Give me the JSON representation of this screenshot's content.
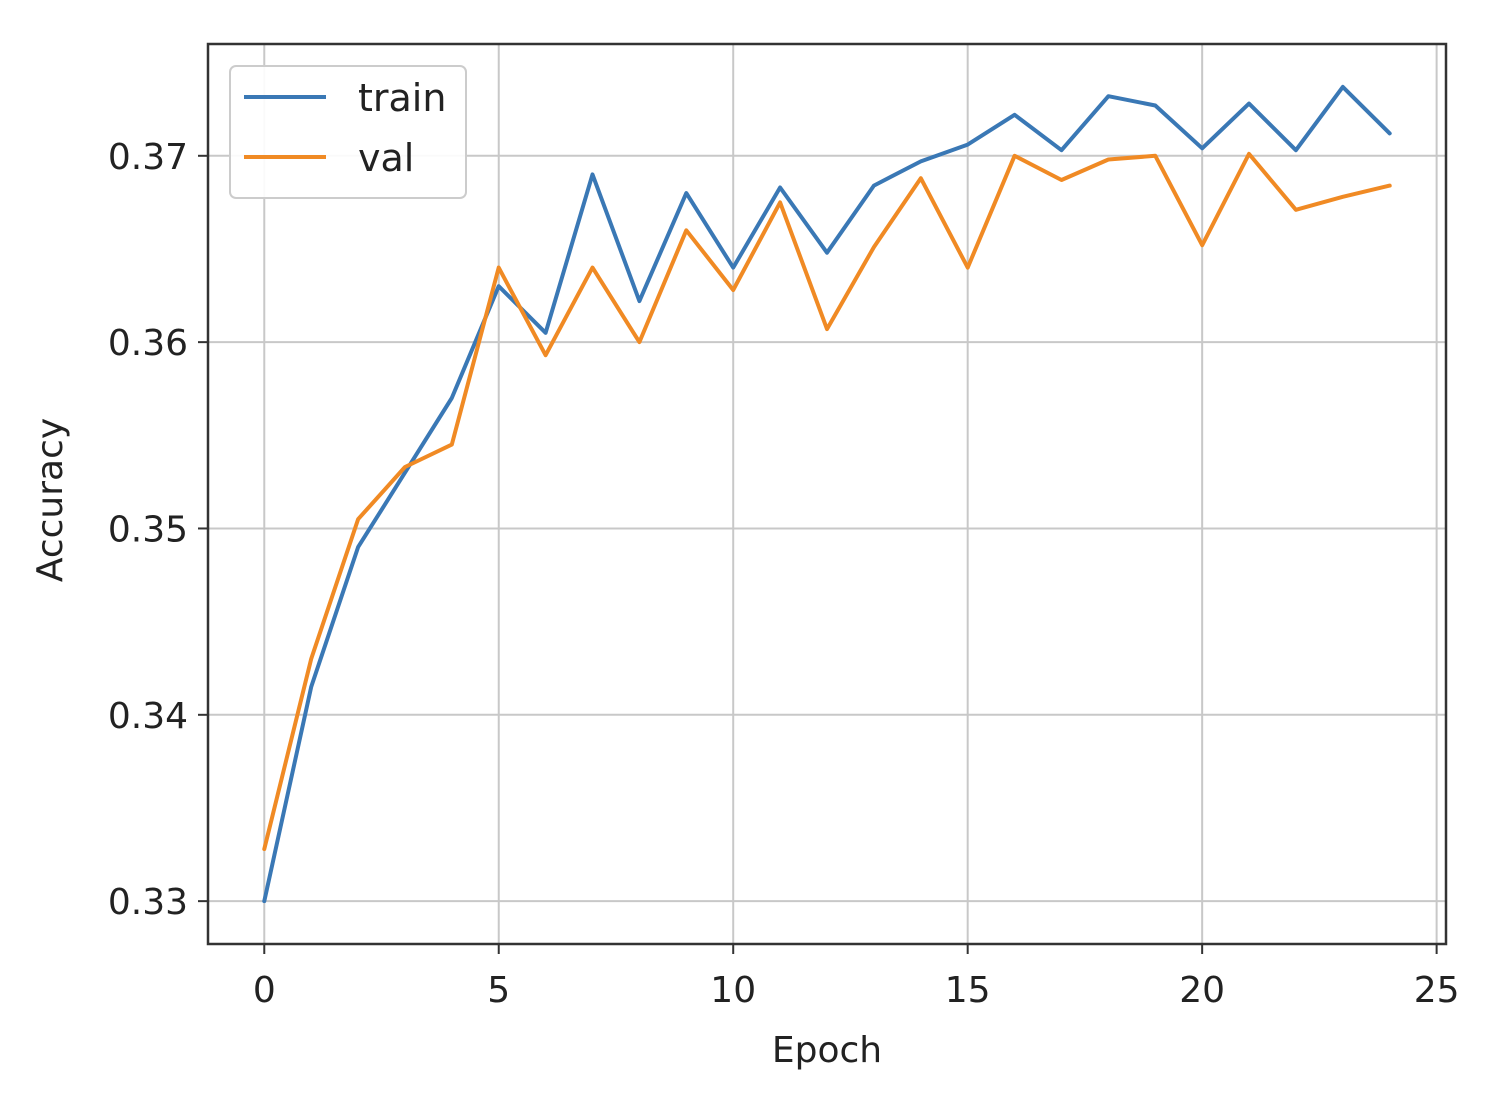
{
  "chart_data": {
    "type": "line",
    "xlabel": "Epoch",
    "ylabel": "Accuracy",
    "xlim": [
      -1.2,
      25.2
    ],
    "ylim": [
      0.3277,
      0.376
    ],
    "xticks": [
      0,
      5,
      10,
      15,
      20,
      25
    ],
    "yticks": [
      0.33,
      0.34,
      0.35,
      0.36,
      0.37
    ],
    "xtick_labels": [
      "0",
      "5",
      "10",
      "15",
      "20",
      "25"
    ],
    "ytick_labels": [
      "0.33",
      "0.34",
      "0.35",
      "0.36",
      "0.37"
    ],
    "grid": true,
    "legend_position": "top-left",
    "x": [
      0,
      1,
      2,
      3,
      4,
      5,
      6,
      7,
      8,
      9,
      10,
      11,
      12,
      13,
      14,
      15,
      16,
      17,
      18,
      19,
      20,
      21,
      22,
      23,
      24
    ],
    "series": [
      {
        "name": "train",
        "color": "#3a78b5",
        "values": [
          0.33,
          0.3415,
          0.349,
          0.353,
          0.357,
          0.363,
          0.3605,
          0.369,
          0.3622,
          0.368,
          0.364,
          0.3683,
          0.3648,
          0.3684,
          0.3697,
          0.3706,
          0.3722,
          0.3703,
          0.3732,
          0.3727,
          0.3704,
          0.3728,
          0.3703,
          0.3737,
          0.3712
        ]
      },
      {
        "name": "val",
        "color": "#f08a24",
        "values": [
          0.3328,
          0.343,
          0.3505,
          0.3533,
          0.3545,
          0.364,
          0.3593,
          0.364,
          0.36,
          0.366,
          0.3628,
          0.3675,
          0.3607,
          0.3651,
          0.3688,
          0.364,
          0.37,
          0.3687,
          0.3698,
          0.37,
          0.3652,
          0.3701,
          0.3671,
          0.3678,
          0.3684
        ]
      }
    ]
  }
}
